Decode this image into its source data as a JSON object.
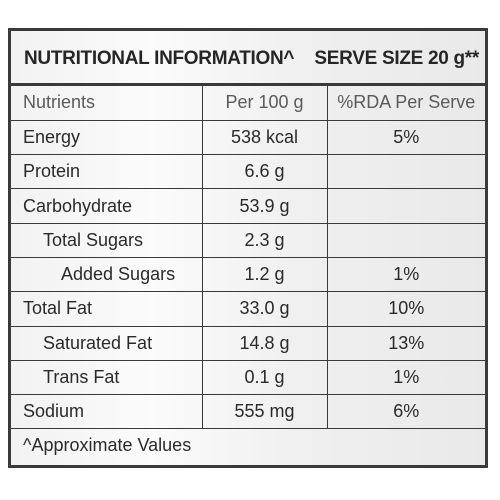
{
  "label": {
    "title": "NUTRITIONAL INFORMATION^",
    "serve_size": "SERVE SIZE 20 g**"
  },
  "columns": {
    "nutrient": "Nutrients",
    "per_100g": "Per 100 g",
    "rda": "%RDA Per Serve"
  },
  "rows": [
    {
      "nutrient": "Energy",
      "per_100g": "538 kcal",
      "rda": "5%"
    },
    {
      "nutrient": "Protein",
      "per_100g": "6.6 g",
      "rda": ""
    },
    {
      "nutrient": "Carbohydrate",
      "per_100g": "53.9 g",
      "rda": ""
    },
    {
      "nutrient": "Total Sugars",
      "per_100g": "2.3 g",
      "rda": ""
    },
    {
      "nutrient": "Added Sugars",
      "per_100g": "1.2 g",
      "rda": "1%"
    },
    {
      "nutrient": "Total Fat",
      "per_100g": "33.0 g",
      "rda": "10%"
    },
    {
      "nutrient": "Saturated Fat",
      "per_100g": "14.8 g",
      "rda": "13%"
    },
    {
      "nutrient": "Trans Fat",
      "per_100g": "0.1 g",
      "rda": "1%"
    },
    {
      "nutrient": "Sodium",
      "per_100g": "555 mg",
      "rda": "6%"
    }
  ],
  "footnote": "^Approximate Values"
}
